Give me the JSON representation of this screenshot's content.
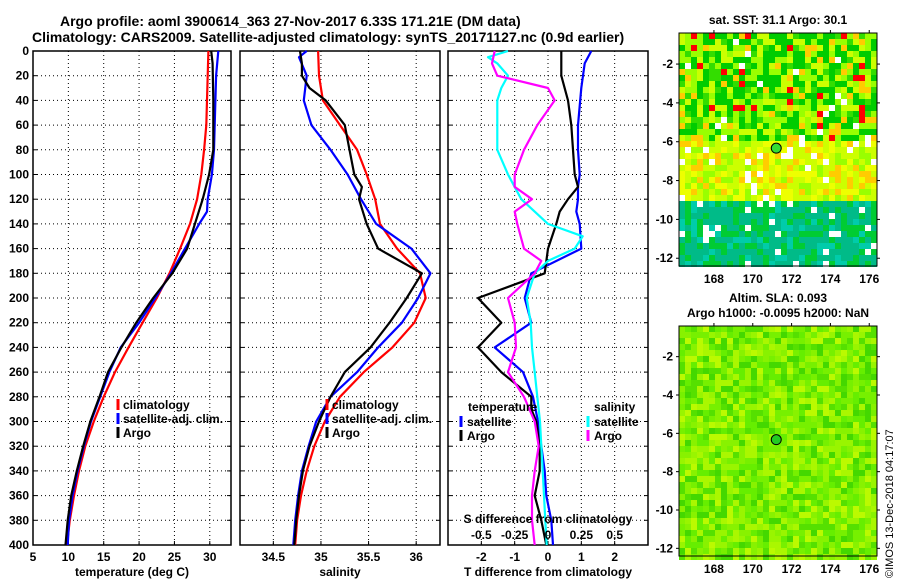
{
  "header": {
    "title_line1": "Argo profile: aoml 3900614_363 27-Nov-2017 6.33S 171.21E (DM data)",
    "title_line2": "Climatology: CARS2009. Satellite-adjusted climatology: synTS_20171127.nc (0.9d earlier)"
  },
  "colors": {
    "climatology": "#ff0000",
    "satellite": "#0000ff",
    "argo": "#000000",
    "sal_satellite": "#00ffff",
    "sal_argo": "#ff00ff"
  },
  "chart_data": [
    {
      "type": "line",
      "name": "temperature",
      "xlabel": "temperature (deg C)",
      "ylabel": "",
      "xlim": [
        5,
        33
      ],
      "ylim": [
        400,
        0
      ],
      "xticks": [
        5,
        10,
        15,
        20,
        25,
        30
      ],
      "yticks": [
        0,
        20,
        40,
        60,
        80,
        100,
        120,
        140,
        160,
        180,
        200,
        220,
        240,
        260,
        280,
        300,
        320,
        340,
        360,
        380,
        400
      ],
      "grid": true,
      "legend": [
        "climatology",
        "satellite-adj. clim.",
        "Argo"
      ],
      "legend_position": "lower-right",
      "series": [
        {
          "name": "climatology",
          "color_key": "climatology",
          "depth": [
            0,
            20,
            40,
            60,
            80,
            100,
            120,
            140,
            160,
            180,
            200,
            220,
            240,
            260,
            280,
            300,
            320,
            340,
            360,
            380,
            400
          ],
          "values": [
            29.8,
            29.7,
            29.6,
            29.5,
            29.2,
            28.8,
            28.2,
            27.2,
            25.8,
            24.3,
            22.5,
            20.5,
            18.5,
            16.6,
            15.0,
            13.6,
            12.4,
            11.5,
            10.8,
            10.2,
            9.8
          ]
        },
        {
          "name": "satellite-adj. clim.",
          "color_key": "satellite",
          "depth": [
            0,
            20,
            40,
            60,
            80,
            100,
            120,
            130,
            140,
            160,
            180,
            200,
            220,
            240,
            260,
            280,
            300,
            320,
            340,
            360,
            380,
            400
          ],
          "values": [
            31.2,
            30.9,
            30.8,
            30.7,
            30.6,
            30.3,
            29.7,
            29.6,
            28.5,
            26.5,
            24.5,
            22.3,
            20.0,
            17.4,
            15.8,
            14.5,
            13.2,
            12.2,
            11.3,
            10.6,
            10.1,
            9.9
          ]
        },
        {
          "name": "Argo",
          "color_key": "argo",
          "depth": [
            0,
            10,
            40,
            60,
            80,
            100,
            120,
            140,
            160,
            180,
            200,
            220,
            240,
            260,
            280,
            300,
            320,
            340,
            360,
            380,
            400
          ],
          "values": [
            30.2,
            30.4,
            30.5,
            30.5,
            30.5,
            29.9,
            29.0,
            27.9,
            26.8,
            24.7,
            22.0,
            19.6,
            17.5,
            15.6,
            14.4,
            13.1,
            12.1,
            11.2,
            10.4,
            9.9,
            9.6
          ]
        }
      ]
    },
    {
      "type": "line",
      "name": "salinity",
      "xlabel": "salinity",
      "xlim": [
        34.15,
        36.25
      ],
      "ylim": [
        400,
        0
      ],
      "xticks": [
        34.5,
        35,
        35.5,
        36
      ],
      "grid": true,
      "legend": [
        "climatology",
        "satellite-adj. clim.",
        "Argo"
      ],
      "legend_position": "lower-right",
      "series": [
        {
          "name": "climatology",
          "color_key": "climatology",
          "depth": [
            0,
            20,
            40,
            60,
            80,
            100,
            120,
            140,
            160,
            180,
            200,
            220,
            240,
            260,
            280,
            300,
            320,
            340,
            360,
            380,
            400
          ],
          "values": [
            34.97,
            34.98,
            35.02,
            35.2,
            35.38,
            35.48,
            35.57,
            35.62,
            35.8,
            36.04,
            36.1,
            35.98,
            35.75,
            35.45,
            35.2,
            35.04,
            34.93,
            34.85,
            34.79,
            34.75,
            34.73
          ]
        },
        {
          "name": "satellite-adj. clim.",
          "color_key": "satellite",
          "depth": [
            0,
            5,
            20,
            40,
            60,
            80,
            100,
            120,
            140,
            160,
            180,
            200,
            220,
            240,
            260,
            280,
            300,
            320,
            340,
            360,
            380,
            400
          ],
          "values": [
            34.85,
            34.77,
            34.85,
            34.82,
            34.9,
            35.1,
            35.28,
            35.42,
            35.58,
            35.95,
            36.15,
            36.02,
            35.85,
            35.6,
            35.38,
            35.1,
            34.95,
            34.87,
            34.8,
            34.76,
            34.73,
            34.71
          ]
        },
        {
          "name": "Argo",
          "color_key": "argo",
          "depth": [
            0,
            10,
            20,
            30,
            40,
            60,
            80,
            100,
            110,
            120,
            140,
            160,
            180,
            200,
            220,
            240,
            260,
            280,
            300,
            320,
            340,
            360,
            380,
            400
          ],
          "values": [
            34.78,
            34.8,
            34.8,
            34.88,
            35.05,
            35.25,
            35.3,
            35.35,
            35.43,
            35.4,
            35.48,
            35.6,
            36.06,
            35.9,
            35.72,
            35.52,
            35.25,
            35.1,
            34.98,
            34.88,
            34.81,
            34.77,
            34.74,
            34.72
          ]
        }
      ]
    },
    {
      "type": "line",
      "name": "difference",
      "xlabel": "T difference from climatology",
      "xlabel_top": "S difference from climatology",
      "xlim": [
        -3,
        3
      ],
      "xlim_S": [
        -0.75,
        0.75
      ],
      "ylim": [
        400,
        0
      ],
      "xticks": [
        -2,
        -1,
        0,
        1,
        2
      ],
      "xticks_S": [
        -0.5,
        -0.25,
        0,
        0.25,
        0.5
      ],
      "xticklabels_S": [
        "-0.5",
        "-0.25",
        "0",
        "0.25",
        "0.5"
      ],
      "grid": true,
      "legend_temperature": {
        "title": "temperature",
        "items": [
          "satellite",
          "Argo"
        ]
      },
      "legend_salinity": {
        "title": "salinity",
        "items": [
          "satellite",
          "Argo"
        ]
      },
      "series": [
        {
          "name": "temperature satellite",
          "color_key": "satellite",
          "axis": "T",
          "depth": [
            0,
            10,
            30,
            60,
            80,
            100,
            110,
            120,
            130,
            140,
            160,
            180,
            200,
            220,
            240,
            260,
            280,
            300,
            320,
            340,
            360,
            380,
            400
          ],
          "values": [
            1.3,
            1.1,
            1.0,
            0.9,
            0.9,
            0.95,
            0.9,
            0.9,
            0.85,
            0.95,
            1.0,
            -0.5,
            -0.7,
            -0.5,
            -1.6,
            -0.75,
            -0.45,
            -0.3,
            -0.2,
            -0.1,
            -0.05,
            0.1,
            0.15
          ]
        },
        {
          "name": "temperature Argo",
          "color_key": "argo",
          "axis": "T",
          "depth": [
            0,
            10,
            20,
            40,
            60,
            80,
            100,
            110,
            120,
            130,
            140,
            160,
            180,
            200,
            220,
            240,
            260,
            280,
            290,
            300,
            320,
            340,
            360,
            380,
            400
          ],
          "values": [
            0.4,
            0.4,
            0.4,
            0.6,
            0.7,
            0.75,
            0.8,
            0.9,
            0.6,
            0.35,
            0.25,
            0.0,
            -0.1,
            -2.1,
            -1.4,
            -2.1,
            -1.4,
            -0.5,
            -0.5,
            -0.35,
            -0.25,
            -0.25,
            -0.4,
            -0.2,
            -0.05
          ]
        },
        {
          "name": "salinity satellite",
          "color_key": "sal_satellite",
          "axis": "S",
          "depth": [
            0,
            5,
            10,
            20,
            30,
            40,
            60,
            80,
            100,
            120,
            140,
            150,
            160,
            170,
            180,
            200,
            220,
            240,
            260,
            280,
            300,
            320,
            340,
            360,
            380,
            400
          ],
          "values": [
            -0.3,
            -0.45,
            -0.38,
            -0.3,
            -0.35,
            -0.38,
            -0.38,
            -0.38,
            -0.3,
            -0.2,
            0.0,
            0.26,
            0.2,
            0.0,
            -0.1,
            -0.16,
            -0.13,
            -0.12,
            -0.1,
            -0.08,
            -0.06,
            -0.05,
            -0.04,
            -0.03,
            -0.02,
            -0.01
          ]
        },
        {
          "name": "salinity Argo",
          "color_key": "sal_argo",
          "axis": "S",
          "depth": [
            0,
            10,
            20,
            30,
            40,
            60,
            80,
            100,
            110,
            120,
            130,
            140,
            160,
            170,
            180,
            200,
            220,
            240,
            260,
            280,
            300,
            320,
            340,
            360,
            380,
            400
          ],
          "values": [
            -0.4,
            -0.42,
            -0.38,
            0.0,
            0.05,
            -0.08,
            -0.18,
            -0.25,
            -0.25,
            -0.12,
            -0.25,
            -0.23,
            -0.18,
            -0.05,
            -0.1,
            -0.3,
            -0.25,
            -0.24,
            -0.3,
            -0.18,
            -0.1,
            -0.07,
            -0.1,
            -0.12,
            -0.12,
            -0.1
          ]
        }
      ]
    },
    {
      "type": "heatmap",
      "name": "sst-map",
      "title": "sat. SST: 31.1 Argo: 30.1",
      "xlim": [
        166.2,
        176.4
      ],
      "ylim": [
        -12.4,
        -0.4
      ],
      "xticks": [
        168,
        170,
        172,
        174,
        176
      ],
      "yticks": [
        -2,
        -4,
        -6,
        -8,
        -10,
        -12
      ],
      "marker": {
        "lon": 171.21,
        "lat": -6.33
      }
    },
    {
      "type": "heatmap",
      "name": "sla-map",
      "title_line1": "Altim. SLA: 0.093",
      "title_line2": "Argo h1000: -0.0095 h2000: NaN",
      "xlim": [
        166.2,
        176.4
      ],
      "ylim": [
        -12.4,
        -0.4
      ],
      "xticks": [
        168,
        170,
        172,
        174,
        176
      ],
      "yticks": [
        -2,
        -4,
        -6,
        -8,
        -10,
        -12
      ],
      "marker": {
        "lon": 171.21,
        "lat": -6.33
      }
    }
  ],
  "stamp": "©IMOS 13-Dec-2018 04:17:07"
}
